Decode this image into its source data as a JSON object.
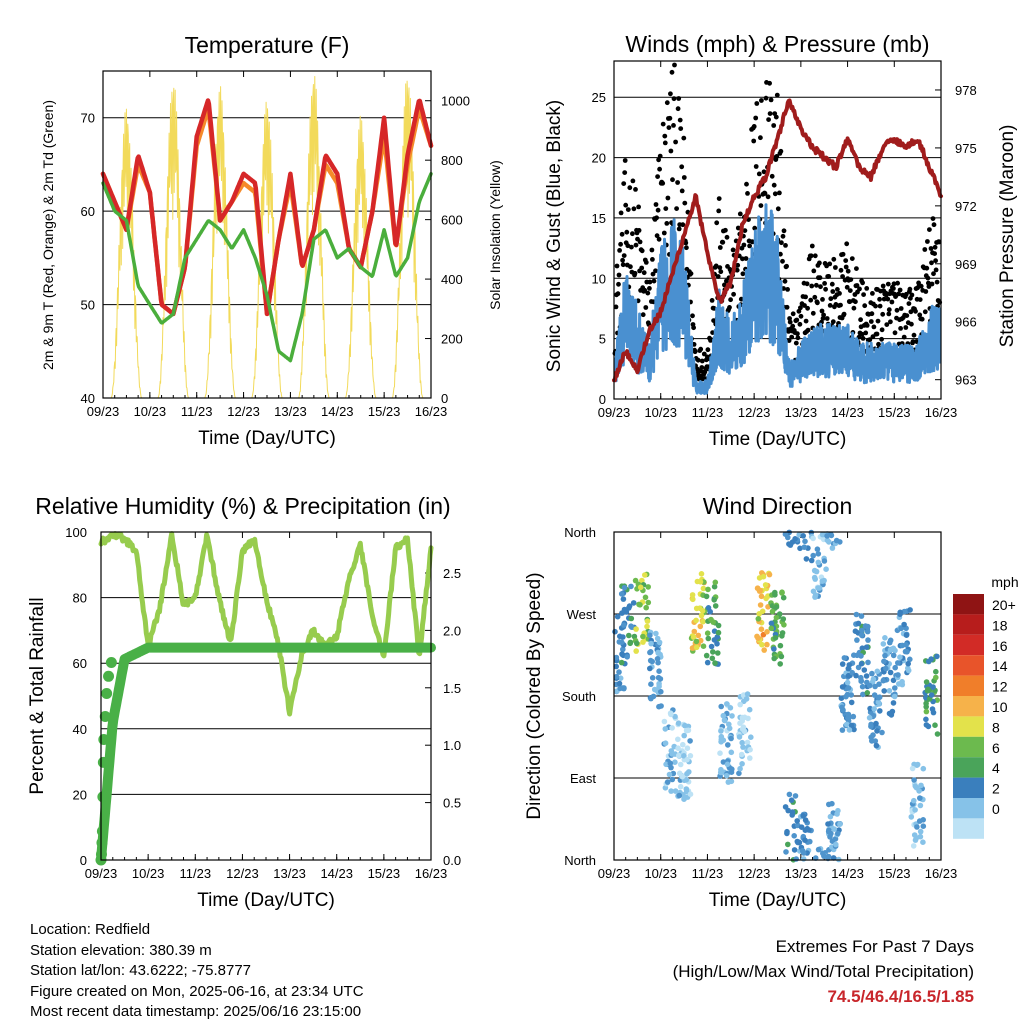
{
  "footer": {
    "location": "Location: Redfield",
    "elevation": "Station elevation: 380.39 m",
    "latlon": "Station lat/lon: 43.6222; -75.8777",
    "created": "Figure created on Mon, 2025-06-16, at 23:34 UTC",
    "recent": "Most recent data timestamp: 2025/06/16 23:15:00"
  },
  "extremes": {
    "title": "Extremes For Past 7 Days",
    "subtitle": "(High/Low/Max Wind/Total Precipitation)",
    "values": "74.5/46.4/16.5/1.85",
    "color": "#c8262b"
  },
  "colors": {
    "t2m": "#d62728",
    "t9m": "#f58a2a",
    "td": "#4aae3c",
    "solar": "#f2da5a",
    "gust": "#000000",
    "wind": "#4a90d0",
    "pressure": "#a01c1c",
    "rh": "#97cc4e",
    "precip": "#49b047",
    "speed_scale": [
      "#bde2f5",
      "#86c2e8",
      "#4f94cc",
      "#3a7fbd",
      "#4aa45a",
      "#6cba4e",
      "#e3e24b",
      "#f6b24a",
      "#f07e2a",
      "#e8542a",
      "#d22b26",
      "#b71d1c",
      "#8f1414"
    ]
  },
  "chart_data": [
    {
      "type": "line",
      "title": "Temperature (F)",
      "xlabel": "Time (Day/UTC)",
      "ylabel": "2m & 9m T (Red, Orange) & 2m Td (Green)",
      "y2label": "Solar Insolation (Yellow)",
      "xticks": [
        "09/23",
        "10/23",
        "11/23",
        "12/23",
        "13/23",
        "14/23",
        "15/23",
        "16/23"
      ],
      "ylim": [
        40,
        75
      ],
      "yticks": [
        40,
        50,
        60,
        70
      ],
      "y2lim": [
        0,
        1100
      ],
      "y2ticks": [
        0,
        200,
        400,
        600,
        800,
        1000
      ],
      "grid": true,
      "x": [
        0,
        0.25,
        0.5,
        0.75,
        1,
        1.25,
        1.5,
        1.75,
        2,
        2.25,
        2.5,
        2.75,
        3,
        3.25,
        3.5,
        3.75,
        4,
        4.25,
        4.5,
        4.75,
        5,
        5.25,
        5.5,
        5.75,
        6,
        6.25,
        6.5,
        6.75,
        7
      ],
      "series": [
        {
          "name": "2m T",
          "color_key": "t2m",
          "values": [
            64,
            61,
            58,
            66,
            62,
            50,
            49,
            54,
            68,
            72,
            59,
            61,
            64,
            63,
            49,
            57,
            64,
            54,
            58,
            66,
            64,
            56,
            54,
            60,
            70,
            56,
            66,
            72,
            67
          ]
        },
        {
          "name": "9m T",
          "color_key": "t9m",
          "values": [
            64,
            61,
            58,
            65,
            62,
            50,
            49,
            54,
            67,
            71,
            59,
            61,
            63,
            62,
            49,
            57,
            63,
            54,
            58,
            65,
            63,
            56,
            54,
            60,
            68,
            56,
            65,
            71,
            67
          ]
        },
        {
          "name": "2m Td",
          "color_key": "td",
          "values": [
            63,
            60,
            59,
            52,
            50,
            48,
            49,
            55,
            57,
            59,
            58,
            56,
            58,
            55,
            51,
            45,
            44,
            49,
            57,
            58,
            55,
            56,
            54,
            53,
            58,
            53,
            55,
            61,
            64
          ]
        }
      ],
      "solar_days": [
        0.5,
        1.5,
        2.5,
        3.5,
        4.5,
        5.5,
        6.5
      ],
      "solar_peaks": [
        980,
        1080,
        1050,
        1010,
        1100,
        950,
        1100
      ]
    },
    {
      "type": "scatter",
      "title": "Winds (mph) & Pressure (mb)",
      "xlabel": "Time (Day/UTC)",
      "ylabel": "Sonic Wind & Gust (Blue, Black)",
      "y2label": "Station Pressure (Maroon)",
      "xticks": [
        "09/23",
        "10/23",
        "11/23",
        "12/23",
        "13/23",
        "14/23",
        "15/23",
        "16/23"
      ],
      "ylim": [
        0,
        28
      ],
      "yticks": [
        0,
        5,
        10,
        15,
        20,
        25
      ],
      "y2lim": [
        962.0,
        979.5
      ],
      "y2ticks": [
        963,
        966,
        969,
        972,
        975,
        978
      ],
      "grid": true,
      "x": [
        0,
        0.25,
        0.5,
        0.75,
        1,
        1.25,
        1.5,
        1.75,
        2,
        2.25,
        2.5,
        2.75,
        3,
        3.25,
        3.5,
        3.75,
        4,
        4.25,
        4.5,
        4.75,
        5,
        5.25,
        5.5,
        5.75,
        6,
        6.25,
        6.5,
        6.75,
        7
      ],
      "series": [
        {
          "name": "gust",
          "color_key": "gust",
          "values": [
            6,
            14,
            12,
            7,
            16,
            20,
            15,
            3,
            3,
            12,
            8,
            12,
            17,
            20,
            18,
            5,
            6,
            9,
            8,
            8,
            9,
            7,
            6,
            7,
            7,
            6,
            7,
            10,
            12
          ]
        },
        {
          "name": "wind",
          "color_key": "wind",
          "values": [
            2,
            7,
            5,
            3,
            8,
            10,
            8,
            1,
            1,
            6,
            4,
            6,
            9,
            11,
            9,
            2,
            3,
            4,
            4,
            4,
            4,
            3,
            3,
            3,
            3,
            3,
            3,
            5,
            5
          ]
        },
        {
          "name": "pressure",
          "color_key": "pressure",
          "values": [
            963,
            964.5,
            963.5,
            965.5,
            966.5,
            968.5,
            970.5,
            972.5,
            969.5,
            967,
            968,
            971,
            972.5,
            973.5,
            975.5,
            977.5,
            976,
            975,
            974.5,
            974,
            975.5,
            974,
            973.5,
            975,
            975.5,
            975,
            975.5,
            974,
            972.5
          ]
        }
      ]
    },
    {
      "type": "line",
      "title": "Relative Humidity (%) & Precipitation (in)",
      "xlabel": "Time (Day/UTC)",
      "ylabel": "Percent & Total Rainfall",
      "xticks": [
        "09/23",
        "10/23",
        "11/23",
        "12/23",
        "13/23",
        "14/23",
        "15/23",
        "16/23"
      ],
      "ylim": [
        0,
        100
      ],
      "yticks": [
        0,
        20,
        40,
        60,
        80,
        100
      ],
      "y2lim": [
        0,
        2.857
      ],
      "y2ticks": [
        0.0,
        0.5,
        1.0,
        1.5,
        2.0,
        2.5
      ],
      "grid": true,
      "x": [
        0,
        0.25,
        0.5,
        0.75,
        1,
        1.25,
        1.5,
        1.75,
        2,
        2.25,
        2.5,
        2.75,
        3,
        3.25,
        3.5,
        3.75,
        4,
        4.25,
        4.5,
        4.75,
        5,
        5.25,
        5.5,
        5.75,
        6,
        6.25,
        6.5,
        6.75,
        7
      ],
      "series": [
        {
          "name": "RH",
          "color_key": "rh",
          "values": [
            97,
            99,
            98,
            94,
            65,
            77,
            99,
            78,
            80,
            99,
            80,
            66,
            94,
            98,
            80,
            67,
            45,
            62,
            70,
            65,
            68,
            85,
            96,
            75,
            62,
            95,
            98,
            62,
            95
          ]
        },
        {
          "name": "Precip",
          "color_key": "precip",
          "values": [
            0.0,
            1.2,
            1.75,
            1.8,
            1.85,
            1.85,
            1.85,
            1.85,
            1.85,
            1.85,
            1.85,
            1.85,
            1.85,
            1.85,
            1.85,
            1.85,
            1.85,
            1.85,
            1.85,
            1.85,
            1.85,
            1.85,
            1.85,
            1.85,
            1.85,
            1.85,
            1.85,
            1.85,
            1.85
          ]
        }
      ]
    },
    {
      "type": "scatter",
      "title": "Wind Direction",
      "xlabel": "Time (Day/UTC)",
      "ylabel": "Direction (Colored By Speed)",
      "xticks": [
        "09/23",
        "10/23",
        "11/23",
        "12/23",
        "13/23",
        "14/23",
        "15/23",
        "16/23"
      ],
      "ylim": [
        0,
        360
      ],
      "yticklabels": [
        "North",
        "East",
        "South",
        "West",
        "North"
      ],
      "grid": true,
      "colorbar_title": "mph",
      "colorbar_labels": [
        "0",
        "2",
        "4",
        "6",
        "8",
        "10",
        "12",
        "14",
        "16",
        "18",
        "20+"
      ],
      "x": [
        0.1,
        0.3,
        0.6,
        0.9,
        1.2,
        1.5,
        1.8,
        2.1,
        2.4,
        2.8,
        3.2,
        3.5,
        3.8,
        4.1,
        4.4,
        4.7,
        5.0,
        5.3,
        5.6,
        5.9,
        6.2,
        6.5,
        6.8
      ],
      "directions": [
        230,
        260,
        270,
        210,
        120,
        110,
        270,
        260,
        130,
        140,
        275,
        250,
        30,
        10,
        330,
        20,
        180,
        225,
        165,
        200,
        230,
        60,
        180
      ],
      "speeds": [
        4,
        6,
        10,
        3,
        2,
        1,
        11,
        7,
        2,
        1,
        12,
        8,
        5,
        4,
        2,
        3,
        4,
        5,
        3,
        4,
        4,
        2,
        7
      ]
    }
  ]
}
